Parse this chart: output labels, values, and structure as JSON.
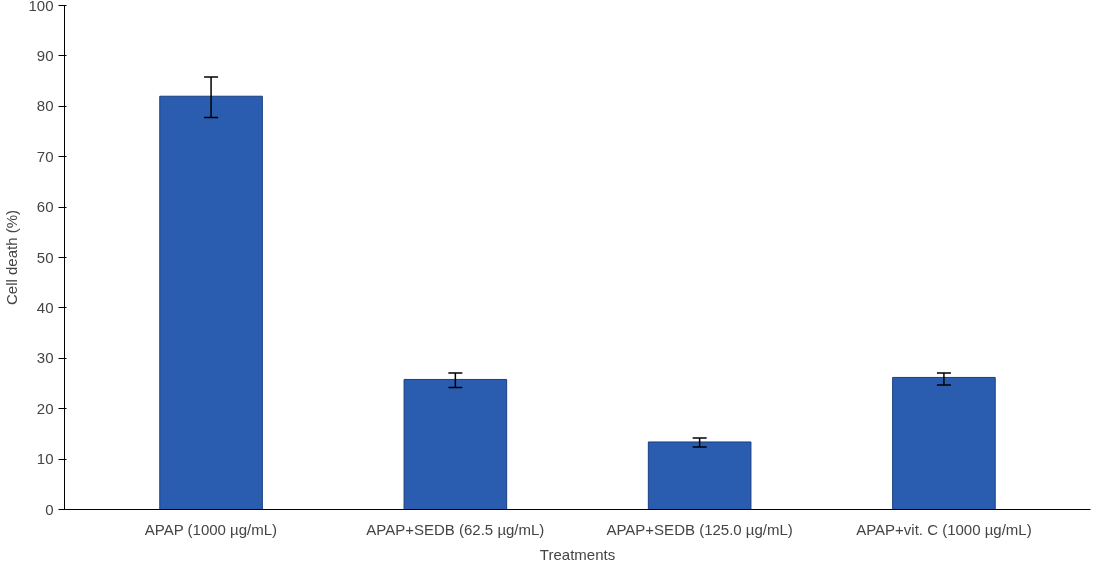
{
  "chart_data": {
    "type": "bar",
    "xlabel": "Treatments",
    "ylabel": "Cell death (%)",
    "categories": [
      "APAP (1000 µg/mL)",
      "APAP+SEDB (62.5 µg/mL)",
      "APAP+SEDB (125.0 µg/mL)",
      "APAP+vit. C (1000 µg/mL)"
    ],
    "values": [
      82,
      25.8,
      13.4,
      26.2
    ],
    "errors": [
      [
        77.8,
        85.8
      ],
      [
        24.2,
        27.1
      ],
      [
        12.4,
        14.2
      ],
      [
        24.7,
        27.1
      ]
    ],
    "color": "#2a5db0",
    "ylim": [
      0,
      100
    ],
    "yticks": [
      0,
      10,
      20,
      30,
      40,
      50,
      60,
      70,
      80,
      90,
      100
    ],
    "grid": false
  }
}
